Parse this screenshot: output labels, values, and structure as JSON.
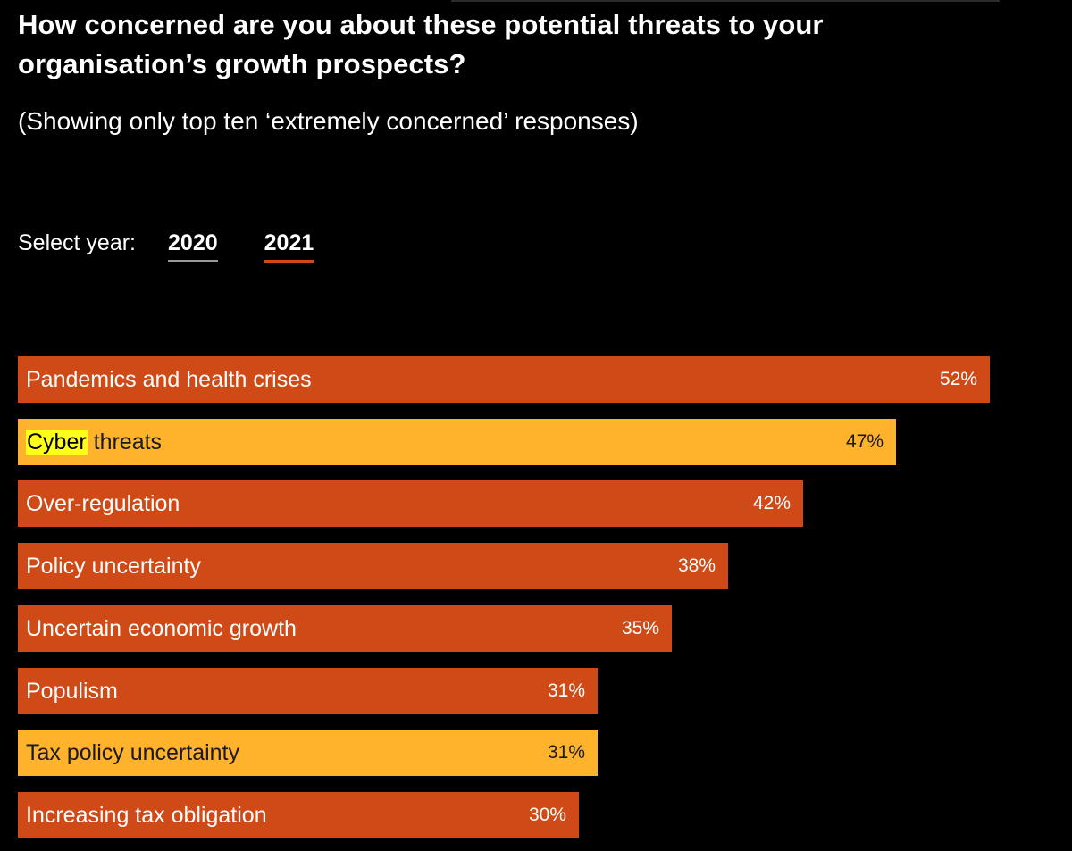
{
  "title": "How concerned are you about these potential threats to your organisation’s growth prospects?",
  "subtitle": "(Showing only top ten ‘extremely concerned’ responses)",
  "year_selector": {
    "label": "Select year:",
    "options": [
      "2020",
      "2021"
    ],
    "selected": "2021"
  },
  "colors": {
    "background": "#000000",
    "bar_default": "#d04a18",
    "bar_highlight": "#ffb22b",
    "text_on_default": "#ffffff",
    "text_on_highlight": "#1a1a1a",
    "search_highlight": "#ffff1a"
  },
  "chart_data": {
    "type": "bar",
    "orientation": "horizontal",
    "unit": "%",
    "xlim": [
      0,
      52
    ],
    "categories": [
      "Pandemics and health crises",
      "Cyber threats",
      "Over-regulation",
      "Policy uncertainty",
      "Uncertain economic growth",
      "Populism",
      "Tax policy uncertainty",
      "Increasing tax obligation"
    ],
    "values": [
      52,
      47,
      42,
      38,
      35,
      31,
      31,
      30
    ],
    "value_labels": [
      "52%",
      "47%",
      "42%",
      "38%",
      "35%",
      "31%",
      "31%",
      "30%"
    ],
    "highlighted": [
      false,
      true,
      false,
      false,
      false,
      false,
      true,
      false
    ],
    "text_highlight": {
      "index": 1,
      "word": "Cyber"
    },
    "grid": false,
    "legend": "none"
  }
}
